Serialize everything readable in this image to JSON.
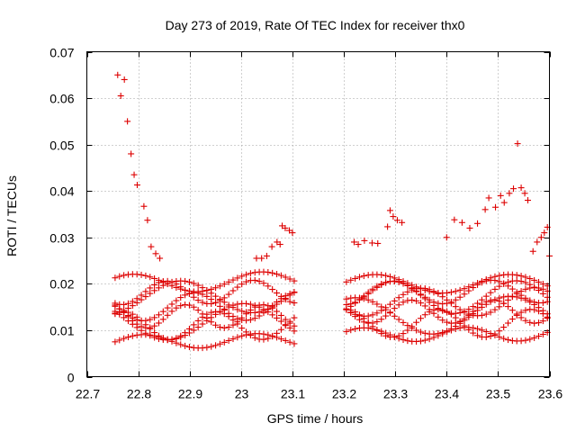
{
  "chart_data": {
    "type": "scatter",
    "title": "Day 273 of 2019, Rate Of TEC Index for receiver thx0",
    "xlabel": "GPS time / hours",
    "ylabel": "ROTI / TECUs",
    "xlim": [
      22.7,
      23.6
    ],
    "ylim": [
      0,
      0.07
    ],
    "xticks": [
      22.7,
      22.8,
      22.9,
      23.0,
      23.1,
      23.2,
      23.3,
      23.4,
      23.5,
      23.6
    ],
    "xtick_labels": [
      "22.7",
      "22.8",
      "22.9",
      "23",
      "23.1",
      "23.2",
      "23.3",
      "23.4",
      "23.5",
      "23.6"
    ],
    "yticks": [
      0,
      0.01,
      0.02,
      0.03,
      0.04,
      0.05,
      0.06,
      0.07
    ],
    "ytick_labels": [
      "0",
      "0.01",
      "0.02",
      "0.03",
      "0.04",
      "0.05",
      "0.06",
      "0.07"
    ],
    "grid": true,
    "marker": "+",
    "marker_color": "#dd0000",
    "series": [
      {
        "name": "ROTI",
        "points": [
          [
            22.76,
            0.065
          ],
          [
            22.766,
            0.0605
          ],
          [
            22.773,
            0.064
          ],
          [
            22.779,
            0.055
          ],
          [
            22.786,
            0.048
          ],
          [
            22.792,
            0.0435
          ],
          [
            22.798,
            0.0413
          ],
          [
            22.811,
            0.0367
          ],
          [
            22.818,
            0.0337
          ],
          [
            22.825,
            0.028
          ],
          [
            22.834,
            0.0265
          ],
          [
            22.842,
            0.0255
          ],
          [
            23.29,
            0.0358
          ],
          [
            23.296,
            0.0345
          ],
          [
            23.304,
            0.0337
          ],
          [
            23.313,
            0.0332
          ],
          [
            23.285,
            0.0323
          ],
          [
            23.22,
            0.029
          ],
          [
            23.228,
            0.0285
          ],
          [
            23.24,
            0.0293
          ],
          [
            23.255,
            0.0288
          ],
          [
            23.266,
            0.0287
          ],
          [
            23.4,
            0.03
          ],
          [
            23.415,
            0.0338
          ],
          [
            23.43,
            0.0332
          ],
          [
            23.445,
            0.032
          ],
          [
            23.46,
            0.033
          ],
          [
            23.475,
            0.036
          ],
          [
            23.482,
            0.0385
          ],
          [
            23.495,
            0.0365
          ],
          [
            23.505,
            0.039
          ],
          [
            23.512,
            0.0375
          ],
          [
            23.522,
            0.0395
          ],
          [
            23.53,
            0.0405
          ],
          [
            23.538,
            0.0502
          ],
          [
            23.545,
            0.0407
          ],
          [
            23.552,
            0.0395
          ],
          [
            23.558,
            0.038
          ],
          [
            23.568,
            0.027
          ],
          [
            23.576,
            0.029
          ],
          [
            23.584,
            0.03
          ],
          [
            23.59,
            0.031
          ],
          [
            23.596,
            0.0322
          ],
          [
            23.6,
            0.026
          ],
          [
            23.08,
            0.0325
          ],
          [
            23.086,
            0.032
          ],
          [
            23.094,
            0.0315
          ],
          [
            23.1,
            0.031
          ],
          [
            23.07,
            0.029
          ],
          [
            23.076,
            0.0285
          ],
          [
            23.06,
            0.028
          ],
          [
            23.05,
            0.026
          ],
          [
            23.04,
            0.0255
          ],
          [
            23.03,
            0.0255
          ]
        ],
        "tracks": [
          {
            "t0": 22.755,
            "t1": 23.105,
            "base": 0.0075,
            "amp": 0.0015,
            "period": 0.22,
            "phase": 0.0,
            "slope": 0.01
          },
          {
            "t0": 22.755,
            "t1": 23.105,
            "base": 0.011,
            "amp": 0.003,
            "period": 0.18,
            "phase": 1.0,
            "slope": 0.0
          },
          {
            "t0": 22.755,
            "t1": 23.105,
            "base": 0.013,
            "amp": 0.0025,
            "period": 0.15,
            "phase": 2.1,
            "slope": 0.0
          },
          {
            "t0": 22.755,
            "t1": 23.105,
            "base": 0.015,
            "amp": 0.003,
            "period": 0.2,
            "phase": 3.0,
            "slope": 0.005
          },
          {
            "t0": 22.755,
            "t1": 23.105,
            "base": 0.018,
            "amp": 0.0025,
            "period": 0.17,
            "phase": 4.2,
            "slope": 0.01
          },
          {
            "t0": 22.755,
            "t1": 23.105,
            "base": 0.02,
            "amp": 0.002,
            "period": 0.25,
            "phase": 0.7,
            "slope": 0.02
          },
          {
            "t0": 22.755,
            "t1": 23.105,
            "base": 0.017,
            "amp": 0.0035,
            "period": 0.28,
            "phase": 5.0,
            "slope": 0.01
          },
          {
            "t0": 22.755,
            "t1": 23.105,
            "base": 0.012,
            "amp": 0.004,
            "period": 0.3,
            "phase": 2.6,
            "slope": -0.01
          },
          {
            "t0": 23.205,
            "t1": 23.605,
            "base": 0.009,
            "amp": 0.0015,
            "period": 0.2,
            "phase": 0.5,
            "slope": 0.005
          },
          {
            "t0": 23.205,
            "t1": 23.605,
            "base": 0.0115,
            "amp": 0.003,
            "period": 0.18,
            "phase": 1.6,
            "slope": 0.0
          },
          {
            "t0": 23.205,
            "t1": 23.605,
            "base": 0.014,
            "amp": 0.0025,
            "period": 0.16,
            "phase": 2.9,
            "slope": 0.0
          },
          {
            "t0": 23.205,
            "t1": 23.605,
            "base": 0.016,
            "amp": 0.003,
            "period": 0.22,
            "phase": 3.7,
            "slope": 0.005
          },
          {
            "t0": 23.205,
            "t1": 23.605,
            "base": 0.018,
            "amp": 0.0025,
            "period": 0.19,
            "phase": 4.8,
            "slope": 0.01
          },
          {
            "t0": 23.205,
            "t1": 23.605,
            "base": 0.02,
            "amp": 0.002,
            "period": 0.26,
            "phase": 0.2,
            "slope": 0.0
          },
          {
            "t0": 23.205,
            "t1": 23.605,
            "base": 0.013,
            "amp": 0.004,
            "period": 0.3,
            "phase": 1.2,
            "slope": 0.01
          },
          {
            "t0": 23.205,
            "t1": 23.605,
            "base": 0.017,
            "amp": 0.0035,
            "period": 0.24,
            "phase": 5.5,
            "slope": 0.005
          }
        ],
        "track_step": 0.0085
      }
    ]
  }
}
